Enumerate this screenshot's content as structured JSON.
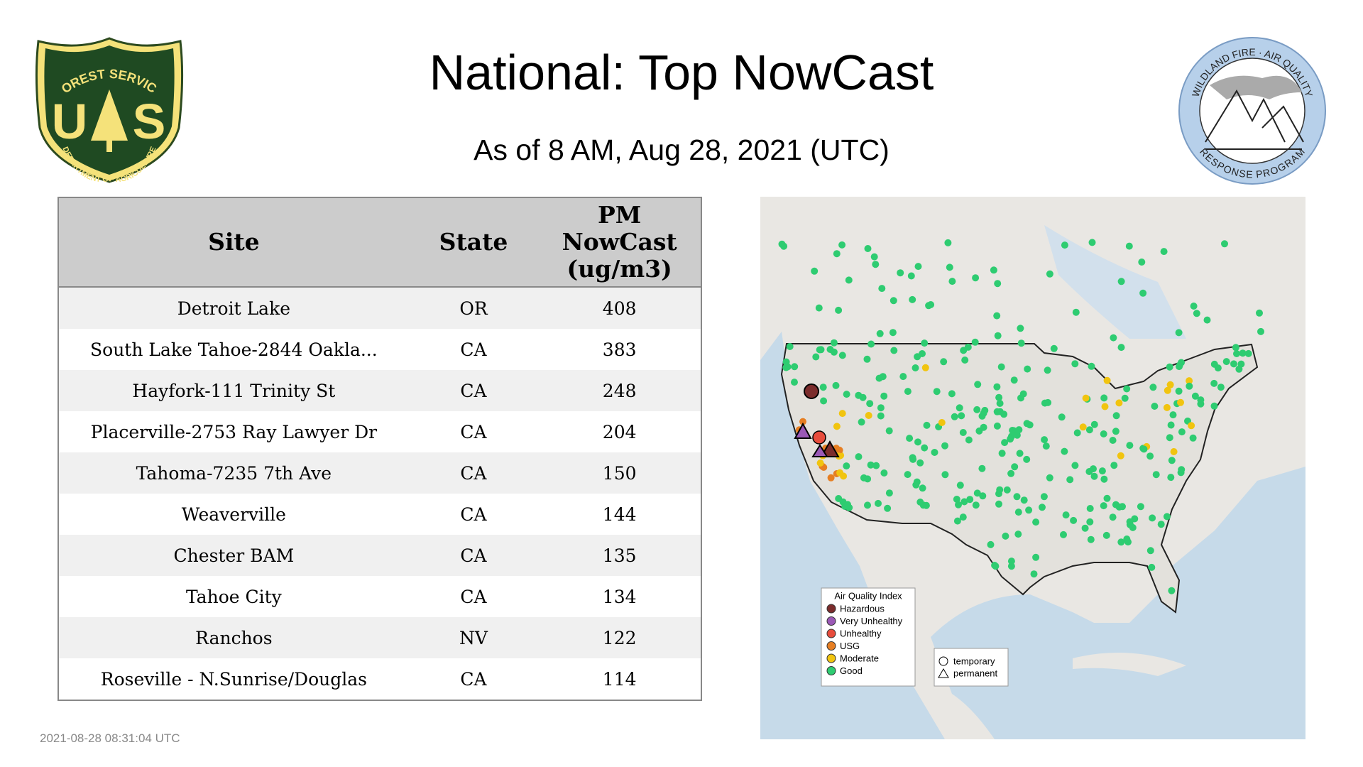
{
  "header": {
    "title": "National: Top NowCast",
    "subtitle": "As of  8 AM, Aug 28, 2021 (UTC)"
  },
  "logos": {
    "forest_service": {
      "top": "FOREST SERVICE",
      "left_letter": "U",
      "right_letter": "S",
      "bottom": "DEPARTMENT OF AGRICULTURE"
    },
    "wildland": {
      "top": "WILDLAND FIRE · AIR QUALITY",
      "bottom": "RESPONSE PROGRAM"
    }
  },
  "table": {
    "columns": [
      "Site",
      "State",
      [
        "PM",
        "NowCast",
        "(ug/m3)"
      ]
    ],
    "rows": [
      [
        "Detroit Lake",
        "OR",
        "408"
      ],
      [
        "South Lake Tahoe-2844 Oakla...",
        "CA",
        "383"
      ],
      [
        "Hayfork-111 Trinity St",
        "CA",
        "248"
      ],
      [
        "Placerville-2753 Ray Lawyer Dr",
        "CA",
        "204"
      ],
      [
        "Tahoma-7235 7th Ave",
        "CA",
        "150"
      ],
      [
        "Weaverville",
        "CA",
        "144"
      ],
      [
        "Chester BAM",
        "CA",
        "135"
      ],
      [
        "Tahoe City",
        "CA",
        "134"
      ],
      [
        "Ranchos",
        "NV",
        "122"
      ],
      [
        "Roseville - N.Sunrise/Douglas",
        "CA",
        "114"
      ]
    ]
  },
  "map": {
    "legend": {
      "title": "Air Quality Index",
      "items": [
        "Hazardous",
        "Very Unhealthy",
        "Unhealthy",
        "USG",
        "Moderate",
        "Good"
      ]
    },
    "shape_legend": [
      "temporary",
      "permanent"
    ]
  },
  "timestamp": "2021-08-28 08:31:04 UTC"
}
